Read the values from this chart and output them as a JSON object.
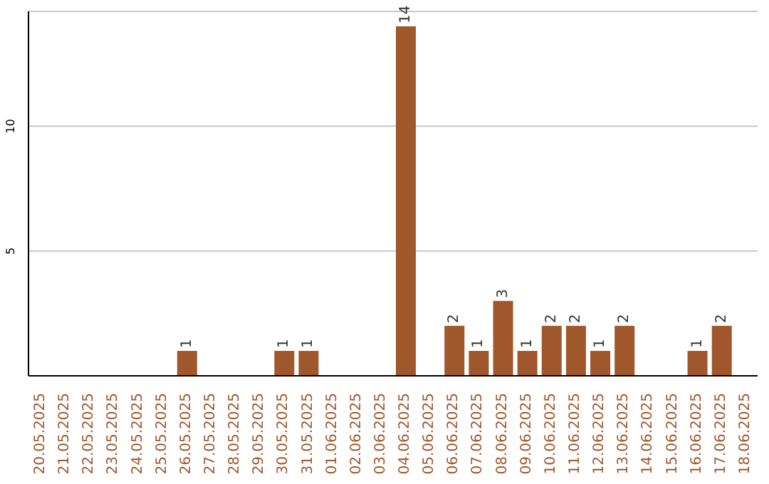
{
  "chart_data": {
    "type": "bar",
    "categories": [
      "20.05.2025",
      "21.05.2025",
      "22.05.2025",
      "23.05.2025",
      "24.05.2025",
      "25.05.2025",
      "26.05.2025",
      "27.05.2025",
      "28.05.2025",
      "29.05.2025",
      "30.05.2025",
      "31.05.2025",
      "01.06.2025",
      "02.06.2025",
      "03.06.2025",
      "04.06.2025",
      "05.06.2025",
      "06.06.2025",
      "07.06.2025",
      "08.06.2025",
      "09.06.2025",
      "10.06.2025",
      "11.06.2025",
      "12.06.2025",
      "13.06.2025",
      "14.06.2025",
      "15.06.2025",
      "16.06.2025",
      "17.06.2025",
      "18.06.2025"
    ],
    "values": [
      0,
      0,
      0,
      0,
      0,
      0,
      1,
      0,
      0,
      0,
      1,
      1,
      0,
      0,
      0,
      14,
      0,
      2,
      1,
      3,
      1,
      2,
      2,
      1,
      2,
      0,
      0,
      1,
      2,
      0
    ],
    "value_labels": [
      null,
      null,
      null,
      null,
      null,
      null,
      "1",
      null,
      null,
      null,
      "1",
      "1",
      null,
      null,
      null,
      "14",
      null,
      "2",
      "1",
      "3",
      "1",
      "2",
      "2",
      "1",
      "2",
      null,
      null,
      "1",
      "2",
      null
    ],
    "color": "#a0572b",
    "ylim": [
      0,
      14.6
    ],
    "yticks": [
      5,
      10
    ],
    "grid": "y"
  }
}
